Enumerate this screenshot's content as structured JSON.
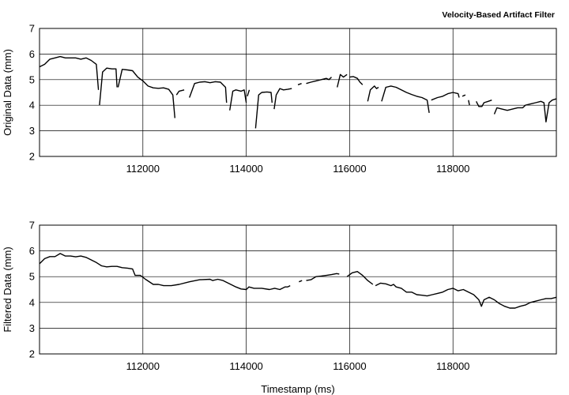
{
  "chart_data": [
    {
      "type": "line",
      "title": "Velocity-Based Artifact Filter",
      "xlabel": "",
      "ylabel": "Original Data (mm)",
      "xlim": [
        110000,
        120000
      ],
      "ylim": [
        2,
        7
      ],
      "xticks": [
        112000,
        114000,
        116000,
        118000
      ],
      "xtick_labels": [
        "112000",
        "114000",
        "116000",
        "118000"
      ],
      "yticks": [
        2,
        3,
        4,
        5,
        6,
        7
      ],
      "ytick_labels": [
        "2",
        "3",
        "4",
        "5",
        "6",
        "7"
      ],
      "grid": true,
      "segments": [
        [
          [
            110000,
            5.5
          ],
          [
            110100,
            5.6
          ],
          [
            110200,
            5.8
          ],
          [
            110300,
            5.85
          ],
          [
            110400,
            5.9
          ],
          [
            110500,
            5.85
          ],
          [
            110600,
            5.85
          ],
          [
            110700,
            5.85
          ],
          [
            110800,
            5.8
          ],
          [
            110900,
            5.85
          ],
          [
            111000,
            5.75
          ],
          [
            111100,
            5.6
          ],
          [
            111140,
            4.6
          ]
        ],
        [
          [
            111160,
            4.0
          ],
          [
            111220,
            5.3
          ],
          [
            111300,
            5.45
          ],
          [
            111400,
            5.42
          ],
          [
            111480,
            5.42
          ],
          [
            111500,
            4.7
          ]
        ],
        [
          [
            111520,
            4.7
          ],
          [
            111600,
            5.4
          ],
          [
            111700,
            5.38
          ],
          [
            111800,
            5.35
          ],
          [
            111900,
            5.1
          ],
          [
            112000,
            4.95
          ],
          [
            112100,
            4.75
          ],
          [
            112200,
            4.68
          ],
          [
            112300,
            4.66
          ],
          [
            112400,
            4.68
          ],
          [
            112500,
            4.62
          ],
          [
            112580,
            4.4
          ],
          [
            112620,
            3.5
          ]
        ],
        [
          [
            112650,
            4.4
          ],
          [
            112700,
            4.55
          ],
          [
            112800,
            4.6
          ]
        ],
        [
          [
            112900,
            4.3
          ],
          [
            113000,
            4.85
          ],
          [
            113100,
            4.9
          ],
          [
            113200,
            4.92
          ],
          [
            113300,
            4.88
          ],
          [
            113400,
            4.92
          ],
          [
            113500,
            4.9
          ],
          [
            113600,
            4.7
          ],
          [
            113620,
            4.1
          ]
        ],
        [
          [
            113680,
            3.8
          ],
          [
            113740,
            4.55
          ],
          [
            113800,
            4.6
          ],
          [
            113900,
            4.55
          ],
          [
            113960,
            4.6
          ],
          [
            114000,
            4.1
          ]
        ],
        [
          [
            114020,
            4.35
          ],
          [
            114060,
            4.6
          ]
        ],
        [
          [
            114180,
            3.1
          ],
          [
            114240,
            4.4
          ],
          [
            114300,
            4.5
          ],
          [
            114400,
            4.52
          ],
          [
            114480,
            4.5
          ],
          [
            114500,
            4.1
          ]
        ],
        [
          [
            114540,
            3.85
          ],
          [
            114580,
            4.4
          ],
          [
            114650,
            4.65
          ],
          [
            114720,
            4.6
          ],
          [
            114800,
            4.62
          ],
          [
            114880,
            4.65
          ]
        ],
        [
          [
            115000,
            4.8
          ],
          [
            115070,
            4.85
          ]
        ],
        [
          [
            115160,
            4.85
          ],
          [
            115250,
            4.9
          ],
          [
            115350,
            4.95
          ],
          [
            115450,
            5.0
          ],
          [
            115550,
            5.05
          ],
          [
            115600,
            5.0
          ],
          [
            115650,
            5.1
          ]
        ],
        [
          [
            115760,
            4.7
          ],
          [
            115820,
            5.2
          ],
          [
            115880,
            5.1
          ],
          [
            115950,
            5.2
          ]
        ],
        [
          [
            116000,
            5.1
          ],
          [
            116070,
            5.12
          ],
          [
            116150,
            5.05
          ],
          [
            116200,
            4.9
          ],
          [
            116250,
            4.8
          ]
        ],
        [
          [
            116350,
            4.15
          ],
          [
            116400,
            4.6
          ],
          [
            116480,
            4.75
          ],
          [
            116520,
            4.65
          ],
          [
            116560,
            4.7
          ]
        ],
        [
          [
            116620,
            4.15
          ],
          [
            116700,
            4.7
          ],
          [
            116800,
            4.75
          ],
          [
            116900,
            4.7
          ],
          [
            117000,
            4.6
          ],
          [
            117100,
            4.5
          ],
          [
            117200,
            4.42
          ],
          [
            117300,
            4.35
          ],
          [
            117400,
            4.3
          ],
          [
            117500,
            4.2
          ],
          [
            117540,
            3.7
          ]
        ],
        [
          [
            117580,
            4.2
          ],
          [
            117700,
            4.3
          ],
          [
            117800,
            4.35
          ],
          [
            117900,
            4.45
          ],
          [
            118000,
            4.5
          ],
          [
            118100,
            4.45
          ],
          [
            118120,
            4.3
          ]
        ],
        [
          [
            118180,
            4.35
          ],
          [
            118240,
            4.4
          ]
        ],
        [
          [
            118300,
            4.2
          ],
          [
            118320,
            4.0
          ]
        ],
        [
          [
            118450,
            4.15
          ],
          [
            118500,
            3.95
          ],
          [
            118560,
            3.95
          ],
          [
            118600,
            4.1
          ],
          [
            118680,
            4.15
          ],
          [
            118750,
            4.2
          ]
        ],
        [
          [
            118800,
            3.65
          ],
          [
            118850,
            3.9
          ],
          [
            118950,
            3.85
          ],
          [
            119050,
            3.8
          ],
          [
            119150,
            3.85
          ],
          [
            119250,
            3.9
          ],
          [
            119350,
            3.9
          ],
          [
            119400,
            4.0
          ],
          [
            119500,
            4.05
          ],
          [
            119600,
            4.1
          ],
          [
            119700,
            4.15
          ],
          [
            119760,
            4.1
          ],
          [
            119800,
            3.35
          ],
          [
            119860,
            4.1
          ],
          [
            119920,
            4.2
          ],
          [
            120000,
            4.25
          ]
        ]
      ]
    },
    {
      "type": "line",
      "title": "",
      "xlabel": "Timestamp (ms)",
      "ylabel": "Filtered Data (mm)",
      "xlim": [
        110000,
        120000
      ],
      "ylim": [
        2,
        7
      ],
      "xticks": [
        112000,
        114000,
        116000,
        118000
      ],
      "xtick_labels": [
        "112000",
        "114000",
        "116000",
        "118000"
      ],
      "yticks": [
        2,
        3,
        4,
        5,
        6,
        7
      ],
      "ytick_labels": [
        "2",
        "3",
        "4",
        "5",
        "6",
        "7"
      ],
      "grid": true,
      "segments": [
        [
          [
            110000,
            5.5
          ],
          [
            110100,
            5.7
          ],
          [
            110200,
            5.78
          ],
          [
            110300,
            5.78
          ],
          [
            110400,
            5.9
          ],
          [
            110500,
            5.8
          ],
          [
            110600,
            5.8
          ],
          [
            110700,
            5.77
          ],
          [
            110800,
            5.8
          ],
          [
            110900,
            5.75
          ],
          [
            111000,
            5.65
          ],
          [
            111100,
            5.55
          ],
          [
            111200,
            5.42
          ],
          [
            111300,
            5.38
          ],
          [
            111400,
            5.4
          ],
          [
            111500,
            5.4
          ],
          [
            111600,
            5.35
          ],
          [
            111700,
            5.33
          ],
          [
            111800,
            5.3
          ],
          [
            111850,
            5.05
          ],
          [
            111950,
            5.05
          ],
          [
            112050,
            4.9
          ],
          [
            112200,
            4.7
          ],
          [
            112300,
            4.7
          ],
          [
            112400,
            4.65
          ],
          [
            112550,
            4.65
          ],
          [
            112700,
            4.7
          ],
          [
            112900,
            4.8
          ],
          [
            113100,
            4.88
          ],
          [
            113300,
            4.9
          ],
          [
            113350,
            4.85
          ],
          [
            113450,
            4.9
          ],
          [
            113550,
            4.85
          ],
          [
            113700,
            4.7
          ],
          [
            113800,
            4.6
          ],
          [
            113900,
            4.52
          ],
          [
            114000,
            4.5
          ],
          [
            114050,
            4.6
          ],
          [
            114150,
            4.55
          ],
          [
            114300,
            4.55
          ],
          [
            114450,
            4.5
          ],
          [
            114550,
            4.55
          ],
          [
            114650,
            4.5
          ],
          [
            114750,
            4.6
          ],
          [
            114800,
            4.6
          ],
          [
            114850,
            4.65
          ]
        ],
        [
          [
            115020,
            4.8
          ],
          [
            115080,
            4.85
          ]
        ],
        [
          [
            115160,
            4.85
          ],
          [
            115250,
            4.88
          ],
          [
            115350,
            5.0
          ],
          [
            115450,
            5.02
          ],
          [
            115550,
            5.05
          ],
          [
            115650,
            5.08
          ],
          [
            115750,
            5.12
          ],
          [
            115800,
            5.1
          ]
        ],
        [
          [
            115950,
            5.0
          ],
          [
            116050,
            5.15
          ],
          [
            116150,
            5.2
          ],
          [
            116250,
            5.05
          ],
          [
            116350,
            4.85
          ],
          [
            116450,
            4.7
          ]
        ],
        [
          [
            116500,
            4.65
          ],
          [
            116600,
            4.75
          ],
          [
            116700,
            4.72
          ],
          [
            116800,
            4.65
          ],
          [
            116850,
            4.7
          ],
          [
            116900,
            4.6
          ],
          [
            117000,
            4.55
          ],
          [
            117100,
            4.4
          ],
          [
            117200,
            4.4
          ],
          [
            117300,
            4.3
          ],
          [
            117400,
            4.28
          ],
          [
            117500,
            4.25
          ],
          [
            117600,
            4.3
          ],
          [
            117700,
            4.35
          ],
          [
            117800,
            4.4
          ],
          [
            117900,
            4.5
          ],
          [
            118000,
            4.55
          ],
          [
            118100,
            4.45
          ],
          [
            118200,
            4.5
          ],
          [
            118300,
            4.4
          ],
          [
            118400,
            4.3
          ],
          [
            118500,
            4.1
          ],
          [
            118550,
            3.85
          ],
          [
            118600,
            4.1
          ],
          [
            118700,
            4.2
          ],
          [
            118800,
            4.1
          ],
          [
            118900,
            3.95
          ],
          [
            119000,
            3.85
          ],
          [
            119100,
            3.78
          ],
          [
            119200,
            3.78
          ],
          [
            119300,
            3.85
          ],
          [
            119400,
            3.9
          ],
          [
            119500,
            4.0
          ],
          [
            119600,
            4.05
          ],
          [
            119700,
            4.1
          ],
          [
            119800,
            4.15
          ],
          [
            119900,
            4.15
          ],
          [
            120000,
            4.2
          ]
        ]
      ]
    }
  ]
}
